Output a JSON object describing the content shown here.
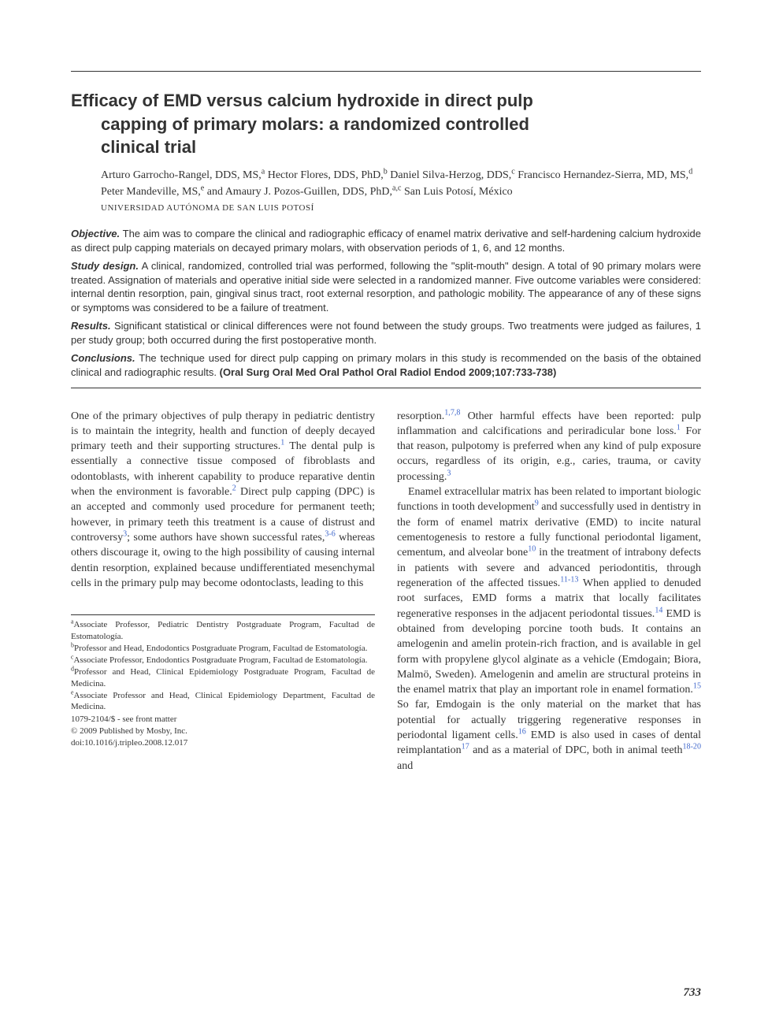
{
  "title_line1": "Efficacy of EMD versus calcium hydroxide in direct pulp",
  "title_line2": "capping of primary molars: a randomized controlled",
  "title_line3": "clinical trial",
  "authors_html": "Arturo Garrocho-Rangel, DDS, MS,<sup>a</sup> Hector Flores, DDS, PhD,<sup>b</sup> Daniel Silva-Herzog, DDS,<sup>c</sup> Francisco Hernandez-Sierra, MD, MS,<sup>d</sup> Peter Mandeville, MS,<sup>e</sup> and Amaury J. Pozos-Guillen, DDS, PhD,<sup>a,c</sup> San Luis Potosí, México",
  "institution": "UNIVERSIDAD AUTÓNOMA DE SAN LUIS POTOSÍ",
  "abstract": {
    "objective_label": "Objective.",
    "objective_text": " The aim was to compare the clinical and radiographic efficacy of enamel matrix derivative and self-hardening calcium hydroxide as direct pulp capping materials on decayed primary molars, with observation periods of 1, 6, and 12 months.",
    "design_label": "Study design.",
    "design_text": " A clinical, randomized, controlled trial was performed, following the \"split-mouth\" design. A total of 90 primary molars were treated. Assignation of materials and operative initial side were selected in a randomized manner. Five outcome variables were considered: internal dentin resorption, pain, gingival sinus tract, root external resorption, and pathologic mobility. The appearance of any of these signs or symptoms was considered to be a failure of treatment.",
    "results_label": "Results.",
    "results_text": " Significant statistical or clinical differences were not found between the study groups. Two treatments were judged as failures, 1 per study group; both occurred during the first postoperative month.",
    "conclusions_label": "Conclusions.",
    "conclusions_text": " The technique used for direct pulp capping on primary molars in this study is recommended on the basis of the obtained clinical and radiographic results. ",
    "citation": "(Oral Surg Oral Med Oral Pathol Oral Radiol Endod 2009;107:733-738)"
  },
  "body": {
    "col1_p1_html": "One of the primary objectives of pulp therapy in pediatric dentistry is to maintain the integrity, health and function of deeply decayed primary teeth and their supporting structures.<sup><a class='ref' href='#'>1</a></sup> The dental pulp is essentially a connective tissue composed of fibroblasts and odontoblasts, with inherent capability to produce reparative dentin when the environment is favorable.<sup><a class='ref' href='#'>2</a></sup> Direct pulp capping (DPC) is an accepted and commonly used procedure for permanent teeth; however, in primary teeth this treatment is a cause of distrust and controversy<sup><a class='ref' href='#'>3</a></sup>; some authors have shown successful rates,<sup><a class='ref' href='#'>3-6</a></sup> whereas others discourage it, owing to the high possibility of causing internal dentin resorption, explained because undifferentiated mesenchymal cells in the primary pulp may become odontoclasts, leading to this",
    "col2_p1_html": "resorption.<sup><a class='ref' href='#'>1,7,8</a></sup> Other harmful effects have been reported: pulp inflammation and calcifications and periradicular bone loss.<sup><a class='ref' href='#'>1</a></sup> For that reason, pulpotomy is preferred when any kind of pulp exposure occurs, regardless of its origin, e.g., caries, trauma, or cavity processing.<sup><a class='ref' href='#'>3</a></sup>",
    "col2_p2_html": "Enamel extracellular matrix has been related to important biologic functions in tooth development<sup><a class='ref' href='#'>9</a></sup> and successfully used in dentistry in the form of enamel matrix derivative (EMD) to incite natural cementogenesis to restore a fully functional periodontal ligament, cementum, and alveolar bone<sup><a class='ref' href='#'>10</a></sup> in the treatment of intrabony defects in patients with severe and advanced periodontitis, through regeneration of the affected tissues.<sup><a class='ref' href='#'>11-13</a></sup> When applied to denuded root surfaces, EMD forms a matrix that locally facilitates regenerative responses in the adjacent periodontal tissues.<sup><a class='ref' href='#'>14</a></sup> EMD is obtained from developing porcine tooth buds. It contains an amelogenin and amelin protein-rich fraction, and is available in gel form with propylene glycol alginate as a vehicle (Emdogain; Biora, Malmö, Sweden). Amelogenin and amelin are structural proteins in the enamel matrix that play an important role in enamel formation.<sup><a class='ref' href='#'>15</a></sup> So far, Emdogain is the only material on the market that has potential for actually triggering regenerative responses in periodontal ligament cells.<sup><a class='ref' href='#'>16</a></sup> EMD is also used in cases of dental reimplantation<sup><a class='ref' href='#'>17</a></sup> and as a material of DPC, both in animal teeth<sup><a class='ref' href='#'>18-20</a></sup> and"
  },
  "footnotes": {
    "a": "Associate Professor, Pediatric Dentistry Postgraduate Program, Facultad de Estomatología.",
    "b": "Professor and Head, Endodontics Postgraduate Program, Facultad de Estomatología.",
    "c": "Associate Professor, Endodontics Postgraduate Program, Facultad de Estomatología.",
    "d": "Professor and Head, Clinical Epidemiology Postgraduate Program, Facultad de Medicina.",
    "e": "Associate Professor and Head, Clinical Epidemiology Department, Facultad de Medicina.",
    "issn": "1079-2104/$ - see front matter",
    "copyright": "© 2009 Published by Mosby, Inc.",
    "doi": "doi:10.1016/j.tripleo.2008.12.017"
  },
  "page_number": "733"
}
